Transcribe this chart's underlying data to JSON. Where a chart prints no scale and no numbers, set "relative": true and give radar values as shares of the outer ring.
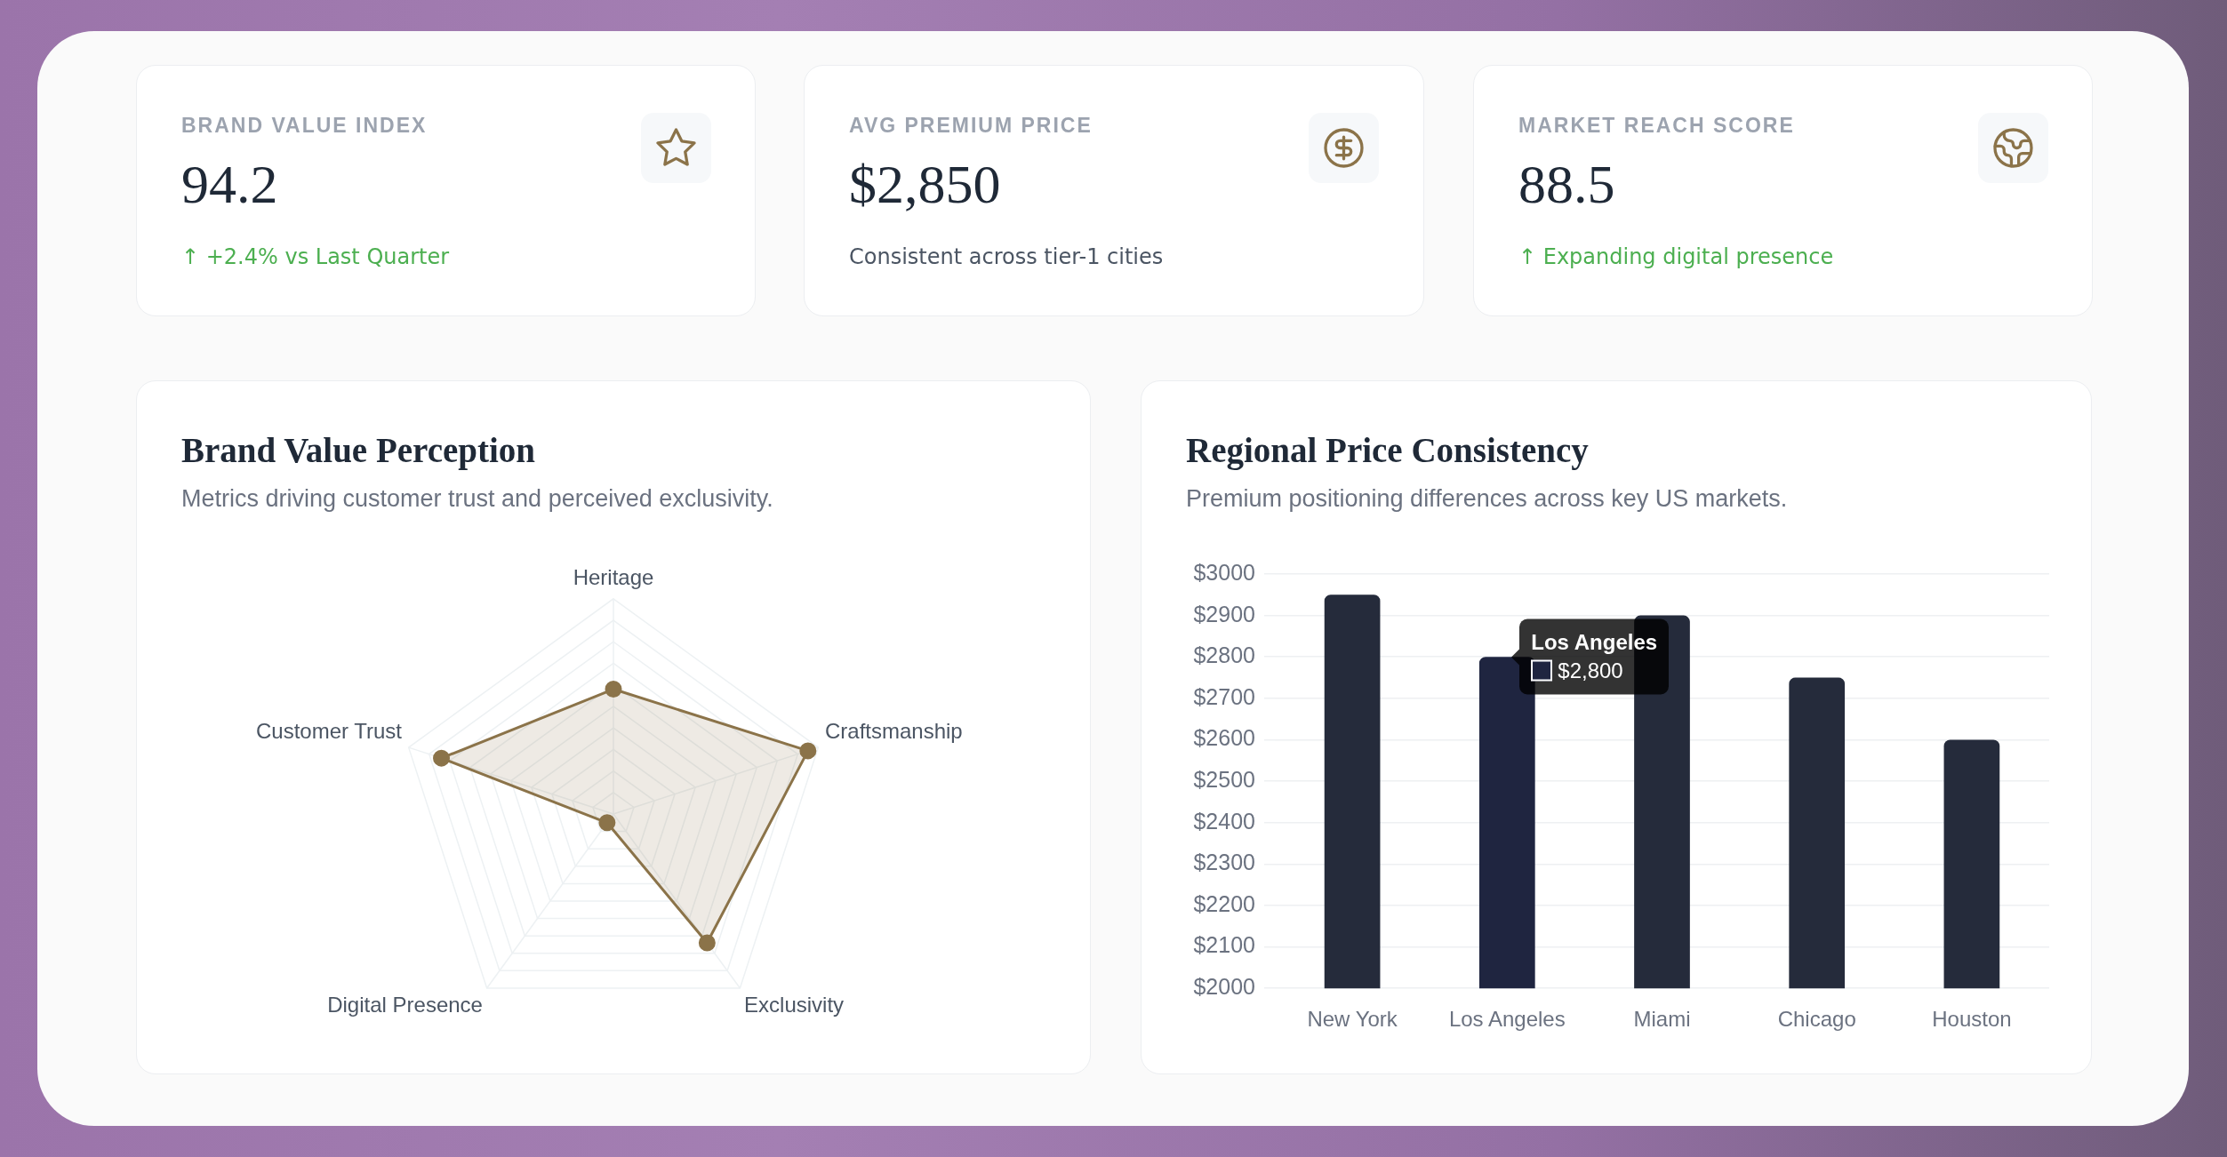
{
  "chart_data": [
    {
      "type": "other",
      "title": "BRAND VALUE INDEX",
      "annotations": [
        "94.2",
        "↑ +2.4% vs Last Quarter"
      ],
      "color": "#4caf50"
    },
    {
      "type": "other",
      "title": "AVG PREMIUM PRICE",
      "annotations": [
        "$2,850",
        "Consistent across tier-1 cities"
      ],
      "color": "#4b5563"
    },
    {
      "type": "other",
      "title": "MARKET REACH SCORE",
      "annotations": [
        "88.5",
        "↑ Expanding digital presence"
      ],
      "color": "#4caf50"
    },
    {
      "type": "radar",
      "title": "Brand Value Perception",
      "subtitle": "Metrics driving customer trust and perceived exclusivity.",
      "categories": [
        "Heritage",
        "Craftsmanship",
        "Exclusivity",
        "Digital Presence",
        "Customer Trust"
      ],
      "relative": true,
      "series": [
        {
          "color": "#8b7349",
          "values": [
            0.58,
            0.95,
            0.74,
            0.05,
            0.84
          ]
        }
      ],
      "grid": true,
      "marker": "circle"
    },
    {
      "type": "bar",
      "title": "Regional Price Consistency",
      "subtitle": "Premium positioning differences across key US markets.",
      "categories": [
        "New York",
        "Los Angeles",
        "Miami",
        "Chicago",
        "Houston"
      ],
      "values": [
        2950,
        2800,
        2900,
        2750,
        2600
      ],
      "colors": [
        "#252b3b",
        "#1f2540",
        "#252b3b",
        "#252b3b",
        "#252b3b"
      ],
      "ylim": [
        2000,
        3000
      ],
      "yticks": [
        {
          "value": 2000,
          "label": "$2000"
        },
        {
          "value": 2100,
          "label": "$2100"
        },
        {
          "value": 2200,
          "label": "$2200"
        },
        {
          "value": 2300,
          "label": "$2300"
        },
        {
          "value": 2400,
          "label": "$2400"
        },
        {
          "value": 2500,
          "label": "$2500"
        },
        {
          "value": 2600,
          "label": "$2600"
        },
        {
          "value": 2700,
          "label": "$2700"
        },
        {
          "value": 2800,
          "label": "$2800"
        },
        {
          "value": 2900,
          "label": "$2900"
        },
        {
          "value": 3000,
          "label": "$3000"
        }
      ],
      "grid": "y",
      "annotations": [
        {
          "text": "$2,800",
          "x": "Los Angeles",
          "y": 2800
        }
      ]
    }
  ]
}
